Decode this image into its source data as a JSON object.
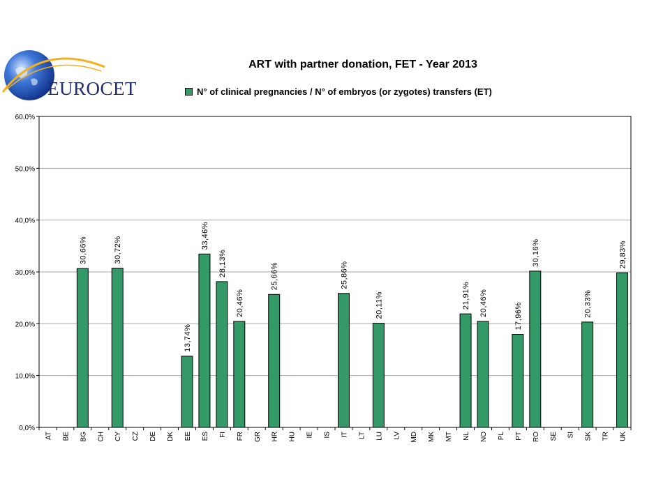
{
  "brand": {
    "logo_text": "EUROCET"
  },
  "chart_data": {
    "type": "bar",
    "title": "ART with partner donation, FET - Year 2013",
    "xlabel": "",
    "ylabel": "",
    "ylim": [
      0,
      60
    ],
    "yticks": [
      0,
      10,
      20,
      30,
      40,
      50,
      60
    ],
    "ytick_labels": [
      "0,0%",
      "10,0%",
      "20,0%",
      "30,0%",
      "40,0%",
      "50,0%",
      "60,0%"
    ],
    "grid": true,
    "legend_position": "top",
    "categories": [
      "AT",
      "BE",
      "BG",
      "CH",
      "CY",
      "CZ",
      "DE",
      "DK",
      "EE",
      "ES",
      "FI",
      "FR",
      "GR",
      "HR",
      "HU",
      "IE",
      "IS",
      "IT",
      "LT",
      "LU",
      "LV",
      "MD",
      "MK",
      "MT",
      "NL",
      "NO",
      "PL",
      "PT",
      "RO",
      "SE",
      "SI",
      "SK",
      "TR",
      "UK"
    ],
    "series": [
      {
        "name": "N° of clinical pregnancies / N° of embryos (or zygotes) transfers (ET)",
        "color": "#339966",
        "values": [
          null,
          null,
          30.66,
          null,
          30.72,
          null,
          null,
          null,
          13.74,
          33.46,
          28.13,
          20.46,
          null,
          25.66,
          null,
          null,
          null,
          25.86,
          null,
          20.11,
          null,
          null,
          null,
          null,
          21.91,
          20.46,
          null,
          17.96,
          30.16,
          null,
          null,
          20.33,
          null,
          29.83
        ],
        "labels": [
          null,
          null,
          "30,66%",
          null,
          "30,72%",
          null,
          null,
          null,
          "13,74%",
          "33,46%",
          "28,13%",
          "20,46%",
          null,
          "25,66%",
          null,
          null,
          null,
          "25,86%",
          null,
          "20,11%",
          null,
          null,
          null,
          null,
          "21,91%",
          "20,46%",
          null,
          "17,96%",
          "30,16%",
          null,
          null,
          "20,33%",
          null,
          "29,83%"
        ]
      }
    ]
  }
}
